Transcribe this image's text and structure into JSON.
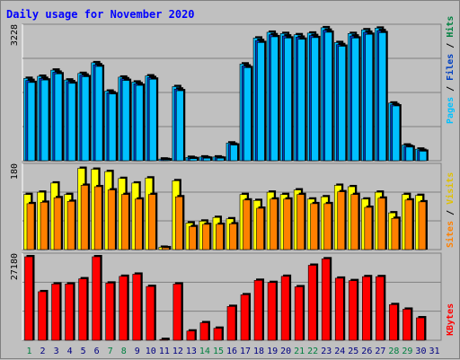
{
  "chart_data": {
    "type": "bar",
    "title": "Daily usage for November 2020",
    "colors": {
      "background": "#c0c0c0",
      "panel": "#c0c0c0",
      "grid": "#808080",
      "title": "#0000ff",
      "hits": "#00c0ff",
      "files": "#0040c0",
      "pages": "#00c0ff",
      "visits": "#ffff00",
      "sites": "#ff8000",
      "kbytes": "#ff0000",
      "weekday_label": "#000080",
      "weekend_label": "#008040"
    },
    "days": [
      "1",
      "2",
      "3",
      "4",
      "5",
      "6",
      "7",
      "8",
      "9",
      "10",
      "11",
      "12",
      "13",
      "14",
      "15",
      "16",
      "17",
      "18",
      "19",
      "20",
      "21",
      "22",
      "23",
      "24",
      "25",
      "26",
      "27",
      "28",
      "29",
      "30",
      "31"
    ],
    "weekend_days": [
      1,
      7,
      8,
      14,
      15,
      21,
      22,
      28,
      29
    ],
    "top_panel": {
      "max_label": "3228",
      "ymax": 3228,
      "side_label": {
        "pages": "Pages",
        "sep1": " / ",
        "files": "Files",
        "sep2": " / ",
        "hits": "Hits"
      },
      "series": [
        {
          "name": "Hits",
          "values": [
            2000,
            2050,
            2200,
            1960,
            2120,
            2380,
            1690,
            2030,
            1910,
            2060,
            40,
            1800,
            80,
            90,
            90,
            430,
            2350,
            2980,
            3120,
            3090,
            3060,
            3100,
            3230,
            2870,
            3090,
            3180,
            3220,
            1400,
            380,
            280,
            0
          ]
        },
        {
          "name": "Files",
          "values": [
            1950,
            2000,
            2150,
            1920,
            2080,
            2330,
            1650,
            1990,
            1870,
            2020,
            30,
            1740,
            60,
            70,
            70,
            400,
            2300,
            2920,
            3060,
            3030,
            3000,
            3040,
            3170,
            2820,
            3030,
            3120,
            3160,
            1360,
            350,
            250,
            0
          ]
        },
        {
          "name": "Pages",
          "values": [
            1900,
            1960,
            2110,
            1880,
            2040,
            2290,
            1620,
            1950,
            1830,
            1980,
            20,
            1700,
            50,
            60,
            60,
            380,
            2260,
            2870,
            3010,
            2980,
            2950,
            2990,
            3120,
            2780,
            2980,
            3070,
            3110,
            1330,
            330,
            230,
            0
          ]
        }
      ]
    },
    "middle_panel": {
      "max_label": "180",
      "ymax": 180,
      "side_label": {
        "sites": "Sites",
        "sep": " / ",
        "visits": "Visits"
      },
      "series": [
        {
          "name": "Visits",
          "values": [
            120,
            125,
            145,
            120,
            177,
            175,
            170,
            155,
            145,
            156,
            5,
            150,
            58,
            62,
            70,
            67,
            120,
            107,
            125,
            120,
            130,
            110,
            115,
            140,
            137,
            110,
            125,
            80,
            120,
            118,
            0
          ]
        },
        {
          "name": "Sites",
          "values": [
            100,
            103,
            113,
            105,
            140,
            137,
            130,
            120,
            110,
            120,
            4,
            115,
            50,
            55,
            55,
            56,
            108,
            90,
            110,
            110,
            120,
            100,
            100,
            126,
            120,
            92,
            112,
            68,
            108,
            104,
            0
          ]
        }
      ]
    },
    "bottom_panel": {
      "max_label": "27180",
      "ymax": 27180,
      "side_label": "KBytes",
      "series": [
        {
          "name": "KBytes",
          "values": [
            27180,
            15800,
            18300,
            18300,
            20000,
            27180,
            18600,
            20800,
            21500,
            17500,
            250,
            18300,
            3000,
            5700,
            3900,
            11000,
            14800,
            19500,
            18800,
            20800,
            17400,
            24400,
            26500,
            20200,
            19400,
            20700,
            20700,
            11600,
            10100,
            7300,
            0
          ]
        }
      ]
    }
  }
}
